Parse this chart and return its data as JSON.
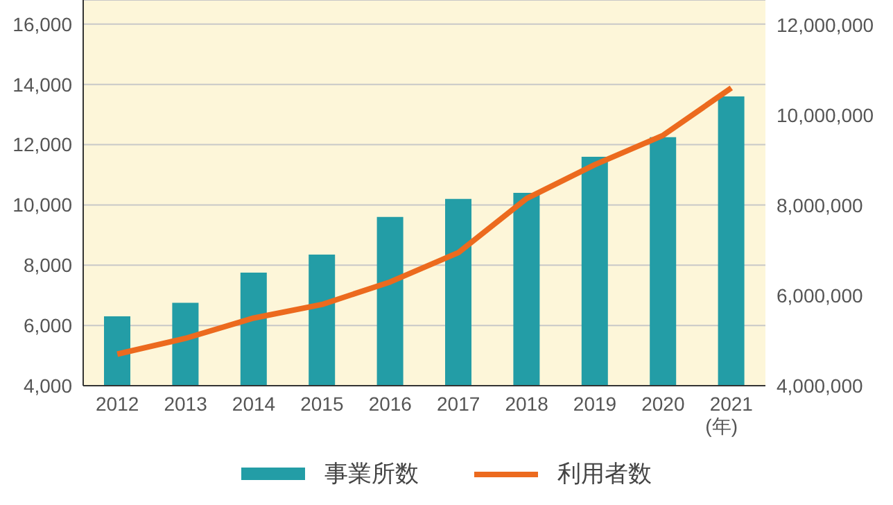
{
  "chart_data": {
    "type": "bar",
    "categories": [
      "2012",
      "2013",
      "2014",
      "2015",
      "2016",
      "2017",
      "2018",
      "2019",
      "2020",
      "2021"
    ],
    "xlabel": "(年)",
    "series": [
      {
        "name": "事業所数",
        "color": "#239da6",
        "values": [
          6300,
          6750,
          7750,
          8350,
          9600,
          10200,
          10400,
          11600,
          12250,
          13600
        ]
      },
      {
        "name": "利用者数",
        "type": "line",
        "axis": "y2",
        "color": "#ec6a1e",
        "values": [
          4700000,
          5050000,
          5500000,
          5800000,
          6300000,
          6950000,
          8150000,
          8900000,
          9550000,
          10600000
        ]
      }
    ],
    "ylim": [
      4000,
      16800
    ],
    "yticks": [
      {
        "value": 4000,
        "label": "4,000"
      },
      {
        "value": 6000,
        "label": "6,000"
      },
      {
        "value": 8000,
        "label": "8,000"
      },
      {
        "value": 10000,
        "label": "10,000"
      },
      {
        "value": 12000,
        "label": "12,000"
      },
      {
        "value": 14000,
        "label": "14,000"
      },
      {
        "value": 16000,
        "label": "16,000"
      }
    ],
    "y2lim": [
      4000000,
      12550000
    ],
    "y2ticks": [
      {
        "value": 4000000,
        "label": "4,000,000"
      },
      {
        "value": 6000000,
        "label": "6,000,000"
      },
      {
        "value": 8000000,
        "label": "8,000,000"
      },
      {
        "value": 10000000,
        "label": "10,000,000"
      },
      {
        "value": 12000000,
        "label": "12,000,000"
      }
    ],
    "grid": "y",
    "legend": "bottom",
    "marker": "none"
  }
}
